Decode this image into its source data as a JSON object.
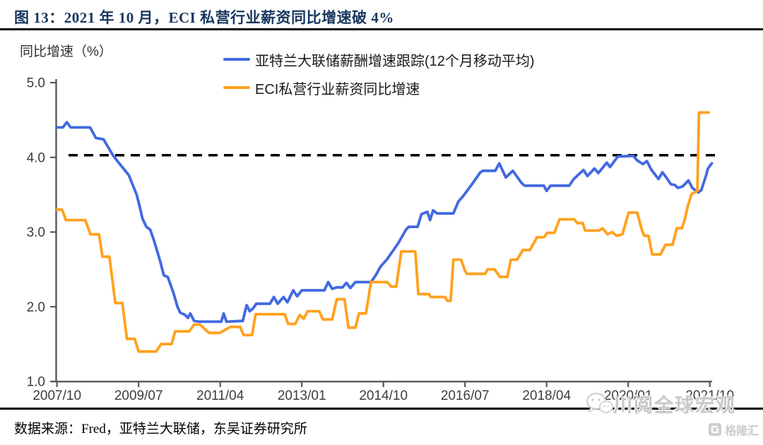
{
  "title": "图 13：2021 年 10 月，ECI 私营行业薪资同比增速破 4%",
  "source": "数据来源：Fred，亚特兰大联储，东吴证券研究所",
  "watermark": {
    "icon": "wechat-icon",
    "text": "川阅全球宏观",
    "logo_icon": "gelonghui-icon",
    "logo_text": "格隆汇"
  },
  "chart_data": {
    "type": "line",
    "title": "图 13：2021 年 10 月，ECI 私营行业薪资同比增速破 4%",
    "ylabel": "同比增速（%）",
    "xlabel": "",
    "ylim": [
      1.0,
      5.0
    ],
    "yticks": [
      "5.0",
      "4.0",
      "3.0",
      "2.0",
      "1.0"
    ],
    "xticks": [
      "2007/10",
      "2009/07",
      "2011/04",
      "2013/01",
      "2014/10",
      "2016/07",
      "2018/04",
      "2020/01",
      "2021/10"
    ],
    "x_unit": "months since 2007/10 (0 = 2007/10, 168 = 2021/10)",
    "xlim": [
      0,
      168
    ],
    "grid": false,
    "legend_position": "top",
    "axis_color": "#595959",
    "tick_label_color": "#3d3d3d",
    "reference_line": {
      "value": 4.0,
      "style": "dashed",
      "color": "#000000",
      "meaning": "4% 水平线"
    },
    "series": [
      {
        "name": "亚特兰大联储薪酬增速跟踪(12个月移动平均)",
        "color": "#4169e1",
        "points": [
          [
            0,
            4.4
          ],
          [
            1.5,
            4.4
          ],
          [
            2.5,
            4.47
          ],
          [
            3.5,
            4.4
          ],
          [
            8.5,
            4.4
          ],
          [
            10,
            4.26
          ],
          [
            12,
            4.24
          ],
          [
            13,
            4.15
          ],
          [
            14.5,
            4.02
          ],
          [
            16,
            3.92
          ],
          [
            18.5,
            3.76
          ],
          [
            20.5,
            3.5
          ],
          [
            21,
            3.4
          ],
          [
            22,
            3.18
          ],
          [
            23,
            3.07
          ],
          [
            24,
            3.03
          ],
          [
            25,
            2.88
          ],
          [
            26.5,
            2.62
          ],
          [
            27.5,
            2.42
          ],
          [
            28.5,
            2.4
          ],
          [
            30,
            2.18
          ],
          [
            31,
            2.0
          ],
          [
            31.7,
            1.92
          ],
          [
            33,
            1.89
          ],
          [
            33.7,
            1.85
          ],
          [
            34.3,
            1.91
          ],
          [
            35.3,
            1.81
          ],
          [
            36.5,
            1.8
          ],
          [
            42.3,
            1.8
          ],
          [
            42.9,
            1.91
          ],
          [
            43.6,
            1.8
          ],
          [
            47.8,
            1.81
          ],
          [
            48.8,
            2.02
          ],
          [
            49.6,
            1.94
          ],
          [
            50.5,
            1.98
          ],
          [
            51.3,
            2.04
          ],
          [
            54.8,
            2.04
          ],
          [
            55.8,
            2.13
          ],
          [
            56.8,
            2.04
          ],
          [
            58.3,
            2.13
          ],
          [
            59.3,
            2.06
          ],
          [
            60.8,
            2.22
          ],
          [
            61.8,
            2.14
          ],
          [
            63,
            2.22
          ],
          [
            68.8,
            2.22
          ],
          [
            69.8,
            2.33
          ],
          [
            70.8,
            2.24
          ],
          [
            72,
            2.26
          ],
          [
            73.5,
            2.26
          ],
          [
            74.5,
            2.32
          ],
          [
            75.5,
            2.25
          ],
          [
            76.8,
            2.33
          ],
          [
            80.8,
            2.33
          ],
          [
            82,
            2.42
          ],
          [
            83.3,
            2.54
          ],
          [
            85,
            2.64
          ],
          [
            87.8,
            2.85
          ],
          [
            89.8,
            3.03
          ],
          [
            90.5,
            3.07
          ],
          [
            92.8,
            3.07
          ],
          [
            93.8,
            3.24
          ],
          [
            95.3,
            3.27
          ],
          [
            96,
            3.16
          ],
          [
            96.8,
            3.29
          ],
          [
            97.8,
            3.25
          ],
          [
            102,
            3.25
          ],
          [
            103.3,
            3.41
          ],
          [
            104.5,
            3.48
          ],
          [
            106.8,
            3.64
          ],
          [
            108.8,
            3.79
          ],
          [
            109.5,
            3.82
          ],
          [
            112.8,
            3.82
          ],
          [
            113.8,
            3.92
          ],
          [
            115.5,
            3.73
          ],
          [
            117.3,
            3.82
          ],
          [
            119.5,
            3.66
          ],
          [
            120.3,
            3.62
          ],
          [
            125.3,
            3.62
          ],
          [
            126,
            3.55
          ],
          [
            127,
            3.62
          ],
          [
            131.8,
            3.62
          ],
          [
            133,
            3.71
          ],
          [
            133.8,
            3.75
          ],
          [
            135.5,
            3.83
          ],
          [
            136.5,
            3.75
          ],
          [
            138.3,
            3.85
          ],
          [
            139.3,
            3.79
          ],
          [
            141.5,
            3.93
          ],
          [
            142.3,
            3.87
          ],
          [
            144.3,
            4.01
          ],
          [
            148.3,
            4.02
          ],
          [
            149.3,
            3.96
          ],
          [
            150.8,
            3.91
          ],
          [
            151.8,
            3.95
          ],
          [
            153,
            3.83
          ],
          [
            154.8,
            3.71
          ],
          [
            155.8,
            3.8
          ],
          [
            156.8,
            3.73
          ],
          [
            158,
            3.64
          ],
          [
            159,
            3.63
          ],
          [
            159.8,
            3.59
          ],
          [
            161,
            3.61
          ],
          [
            162.5,
            3.69
          ],
          [
            163.5,
            3.59
          ],
          [
            165,
            3.53
          ],
          [
            165.8,
            3.56
          ],
          [
            167,
            3.75
          ],
          [
            167.5,
            3.85
          ],
          [
            168.5,
            3.92
          ]
        ]
      },
      {
        "name": "ECI私营行业薪资同比增速",
        "color": "#ffa11e",
        "points": [
          [
            0,
            3.3
          ],
          [
            1.3,
            3.3
          ],
          [
            2.3,
            3.16
          ],
          [
            7.3,
            3.16
          ],
          [
            8.6,
            2.97
          ],
          [
            10.8,
            2.97
          ],
          [
            11.7,
            2.67
          ],
          [
            13.5,
            2.67
          ],
          [
            15,
            2.05
          ],
          [
            16.8,
            2.05
          ],
          [
            18,
            1.57
          ],
          [
            20,
            1.57
          ],
          [
            21,
            1.4
          ],
          [
            25.5,
            1.4
          ],
          [
            26.8,
            1.5
          ],
          [
            29.5,
            1.5
          ],
          [
            30.4,
            1.67
          ],
          [
            34,
            1.67
          ],
          [
            35.3,
            1.76
          ],
          [
            36.8,
            1.76
          ],
          [
            39.1,
            1.65
          ],
          [
            41.9,
            1.65
          ],
          [
            44.6,
            1.73
          ],
          [
            47.1,
            1.73
          ],
          [
            48,
            1.62
          ],
          [
            50.2,
            1.62
          ],
          [
            51.1,
            1.9
          ],
          [
            58.6,
            1.9
          ],
          [
            59.5,
            1.77
          ],
          [
            61.3,
            1.77
          ],
          [
            62.5,
            1.89
          ],
          [
            63.5,
            1.84
          ],
          [
            64.5,
            1.94
          ],
          [
            67.5,
            1.94
          ],
          [
            68.4,
            1.83
          ],
          [
            70.8,
            1.83
          ],
          [
            72,
            2.1
          ],
          [
            74,
            2.1
          ],
          [
            75,
            1.72
          ],
          [
            76.8,
            1.72
          ],
          [
            77.7,
            1.91
          ],
          [
            79.5,
            1.91
          ],
          [
            80.8,
            2.33
          ],
          [
            85,
            2.33
          ],
          [
            86,
            2.27
          ],
          [
            87.3,
            2.27
          ],
          [
            88.6,
            2.74
          ],
          [
            92.2,
            2.74
          ],
          [
            93,
            2.17
          ],
          [
            95.7,
            2.17
          ],
          [
            96.2,
            2.13
          ],
          [
            99.9,
            2.13
          ],
          [
            100.4,
            2.08
          ],
          [
            101.3,
            2.08
          ],
          [
            102,
            2.63
          ],
          [
            104,
            2.63
          ],
          [
            105,
            2.48
          ],
          [
            105.5,
            2.44
          ],
          [
            110.2,
            2.44
          ],
          [
            110.8,
            2.5
          ],
          [
            112.6,
            2.5
          ],
          [
            114,
            2.4
          ],
          [
            115.9,
            2.4
          ],
          [
            116.8,
            2.63
          ],
          [
            118.4,
            2.63
          ],
          [
            119.9,
            2.76
          ],
          [
            121.7,
            2.76
          ],
          [
            123.5,
            2.93
          ],
          [
            125.3,
            2.93
          ],
          [
            126.2,
            2.99
          ],
          [
            128,
            2.99
          ],
          [
            129.3,
            3.17
          ],
          [
            133.1,
            3.17
          ],
          [
            133.9,
            3.12
          ],
          [
            135.3,
            3.12
          ],
          [
            135.9,
            3.02
          ],
          [
            139.5,
            3.02
          ],
          [
            140.4,
            3.05
          ],
          [
            141.7,
            2.97
          ],
          [
            142.8,
            3.0
          ],
          [
            144,
            2.95
          ],
          [
            145.5,
            2.97
          ],
          [
            147.1,
            3.26
          ],
          [
            149.3,
            3.26
          ],
          [
            150.5,
            3.03
          ],
          [
            151.1,
            2.95
          ],
          [
            152.2,
            2.95
          ],
          [
            153.2,
            2.7
          ],
          [
            155.3,
            2.7
          ],
          [
            156.6,
            2.83
          ],
          [
            158.4,
            2.83
          ],
          [
            159.5,
            3.05
          ],
          [
            160.8,
            3.05
          ],
          [
            161.5,
            3.16
          ],
          [
            162.4,
            3.36
          ],
          [
            163.3,
            3.51
          ],
          [
            164.8,
            3.55
          ],
          [
            165.2,
            4.6
          ],
          [
            167.7,
            4.6
          ]
        ]
      }
    ]
  }
}
